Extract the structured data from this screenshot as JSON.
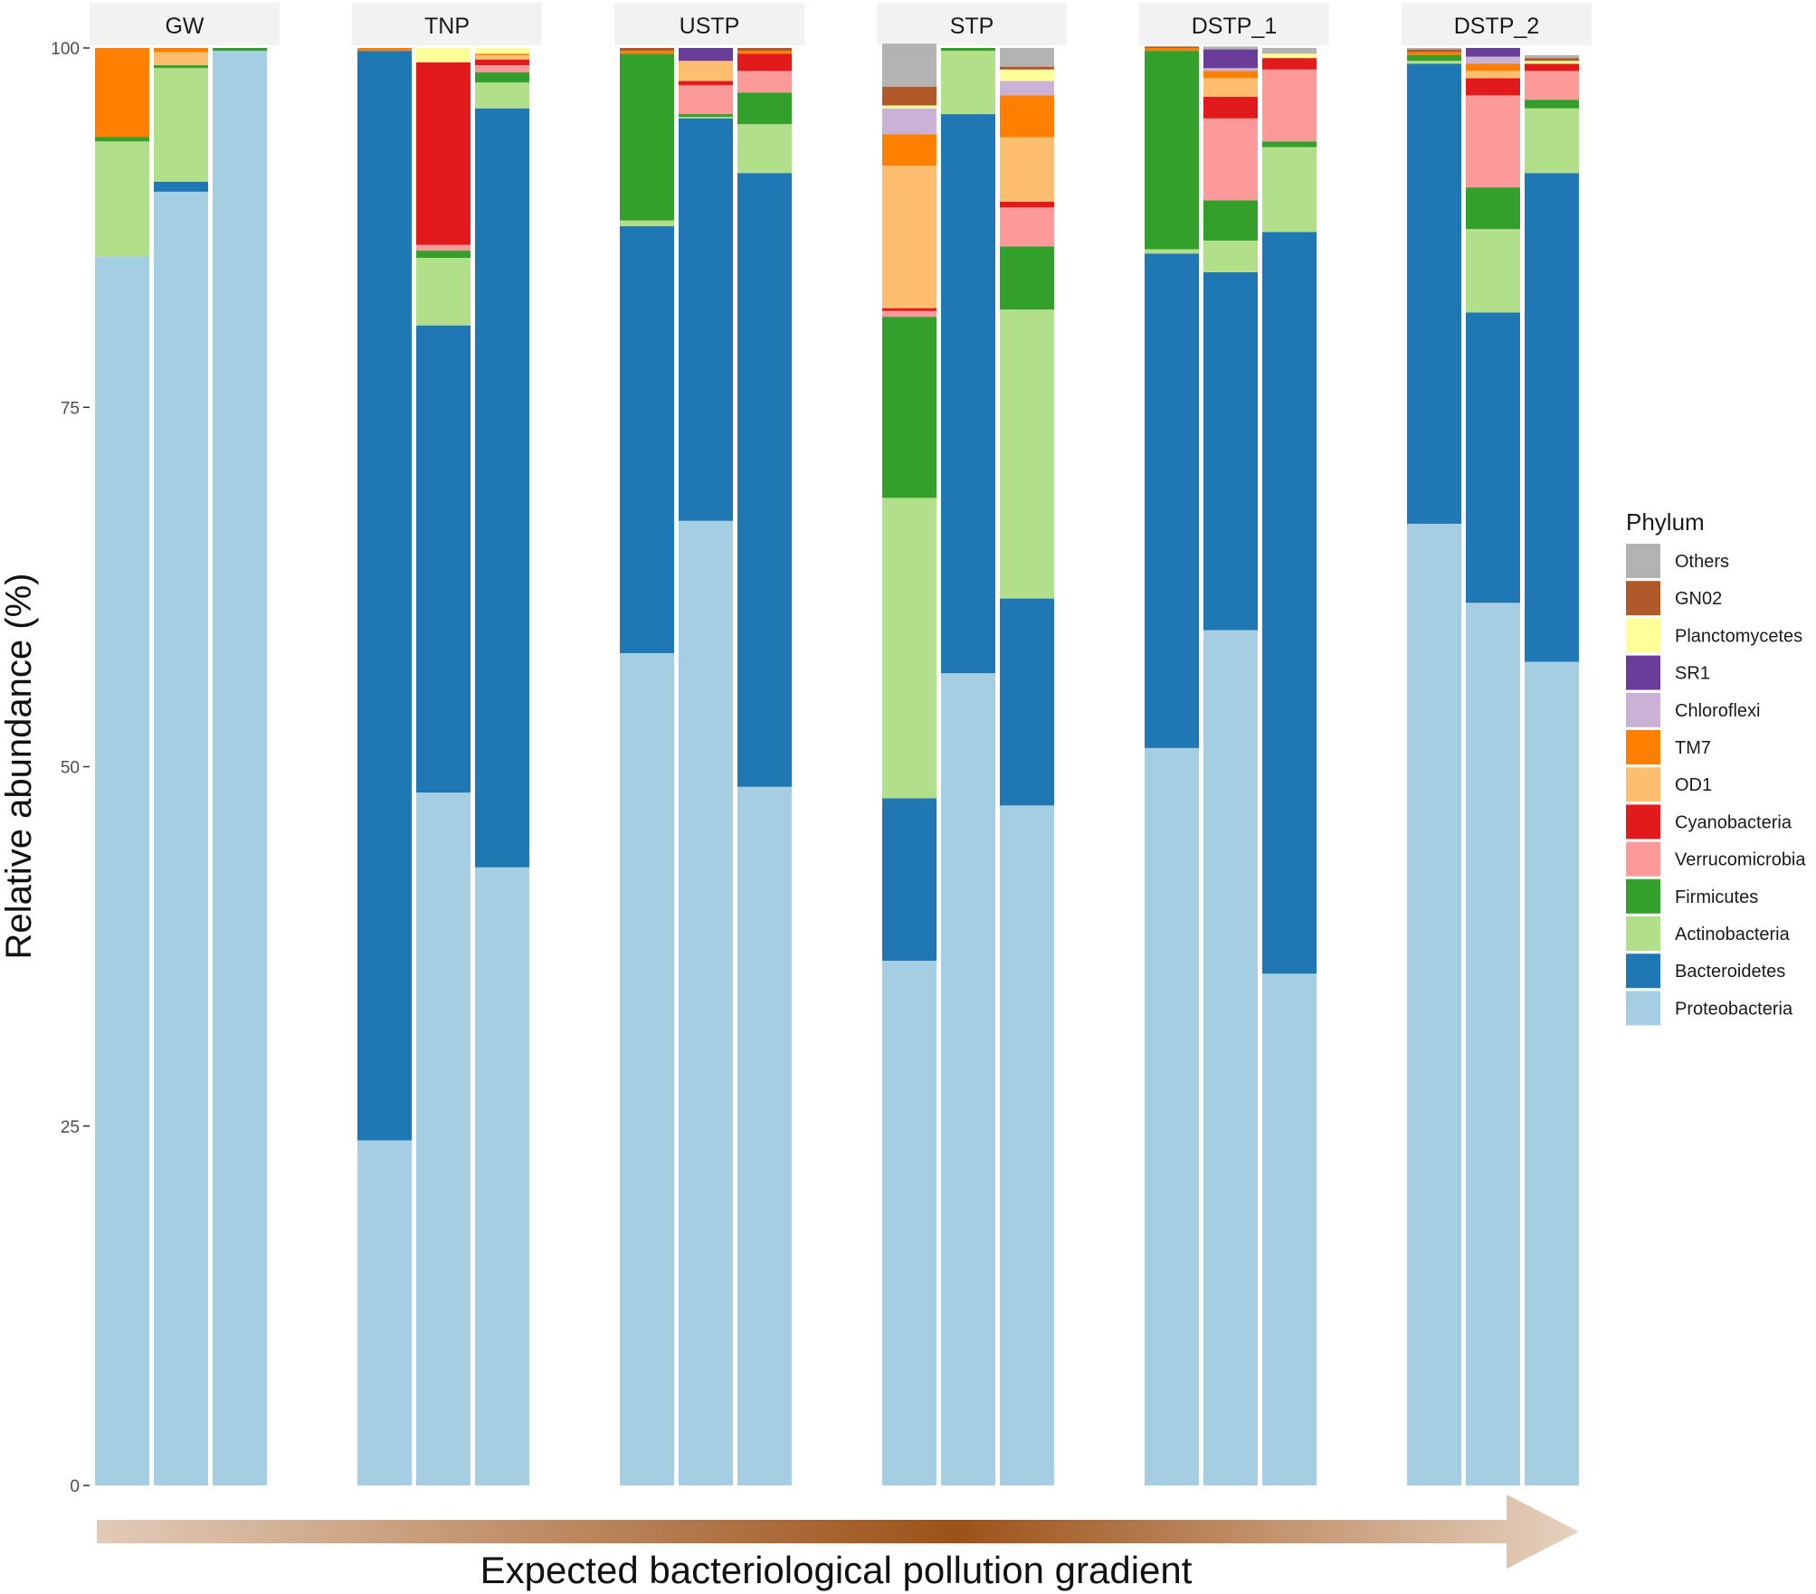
{
  "chart_data": {
    "type": "bar",
    "stacked": true,
    "ylabel": "Relative abundance (%)",
    "xlabel": "",
    "ylim": [
      0,
      100
    ],
    "yticks": [
      "0",
      "25",
      "50",
      "75",
      "100"
    ],
    "bottom_label": "Expected bacteriological pollution gradient",
    "legend": {
      "title": "Phylum",
      "placement": "right",
      "items": [
        {
          "name": "Others",
          "color": "#b3b3b3"
        },
        {
          "name": "GN02",
          "color": "#b15928"
        },
        {
          "name": "Planctomycetes",
          "color": "#ffff99"
        },
        {
          "name": "SR1",
          "color": "#6a3d9a"
        },
        {
          "name": "Chloroflexi",
          "color": "#cab2d6"
        },
        {
          "name": "TM7",
          "color": "#ff7f00"
        },
        {
          "name": "OD1",
          "color": "#fdbf6f"
        },
        {
          "name": "Cyanobacteria",
          "color": "#e31a1c"
        },
        {
          "name": "Verrucomicrobia",
          "color": "#fb9a99"
        },
        {
          "name": "Firmicutes",
          "color": "#33a02c"
        },
        {
          "name": "Actinobacteria",
          "color": "#b2df8a"
        },
        {
          "name": "Bacteroidetes",
          "color": "#1f78b4"
        },
        {
          "name": "Proteobacteria",
          "color": "#a6cee3"
        }
      ]
    },
    "stack_order": [
      "Proteobacteria",
      "Bacteroidetes",
      "Actinobacteria",
      "Firmicutes",
      "Verrucomicrobia",
      "Cyanobacteria",
      "OD1",
      "TM7",
      "Chloroflexi",
      "SR1",
      "Planctomycetes",
      "GN02",
      "Others"
    ],
    "facets": [
      {
        "name": "GW",
        "bars": [
          {
            "Proteobacteria": 85.5,
            "Bacteroidetes": 0,
            "Actinobacteria": 8.0,
            "Firmicutes": 0.3,
            "Verrucomicrobia": 0,
            "Cyanobacteria": 0,
            "OD1": 0,
            "TM7": 6.2,
            "Chloroflexi": 0,
            "SR1": 0,
            "Planctomycetes": 0,
            "GN02": 0,
            "Others": 0
          },
          {
            "Proteobacteria": 90.0,
            "Bacteroidetes": 0.7,
            "Actinobacteria": 7.9,
            "Firmicutes": 0.2,
            "Verrucomicrobia": 0,
            "Cyanobacteria": 0,
            "OD1": 0.9,
            "TM7": 0.3,
            "Chloroflexi": 0,
            "SR1": 0,
            "Planctomycetes": 0,
            "GN02": 0,
            "Others": 0
          },
          {
            "Proteobacteria": 99.8,
            "Bacteroidetes": 0,
            "Actinobacteria": 0,
            "Firmicutes": 0.2,
            "Verrucomicrobia": 0,
            "Cyanobacteria": 0,
            "OD1": 0,
            "TM7": 0,
            "Chloroflexi": 0,
            "SR1": 0,
            "Planctomycetes": 0,
            "GN02": 0,
            "Others": 0
          }
        ]
      },
      {
        "name": "TNP",
        "bars": [
          {
            "Proteobacteria": 24.0,
            "Bacteroidetes": 75.8,
            "Actinobacteria": 0,
            "Firmicutes": 0,
            "Verrucomicrobia": 0,
            "Cyanobacteria": 0,
            "OD1": 0,
            "TM7": 0.2,
            "Chloroflexi": 0,
            "SR1": 0,
            "Planctomycetes": 0,
            "GN02": 0,
            "Others": 0
          },
          {
            "Proteobacteria": 48.2,
            "Bacteroidetes": 32.5,
            "Actinobacteria": 4.7,
            "Firmicutes": 0.5,
            "Verrucomicrobia": 0.4,
            "Cyanobacteria": 12.7,
            "OD1": 0,
            "TM7": 0,
            "Chloroflexi": 0,
            "SR1": 0,
            "Planctomycetes": 1.0,
            "GN02": 0,
            "Others": 0
          },
          {
            "Proteobacteria": 43.0,
            "Bacteroidetes": 52.8,
            "Actinobacteria": 1.8,
            "Firmicutes": 0.7,
            "Verrucomicrobia": 0.5,
            "Cyanobacteria": 0.4,
            "OD1": 0.3,
            "TM7": 0.1,
            "Chloroflexi": 0,
            "SR1": 0,
            "Planctomycetes": 0.4,
            "GN02": 0,
            "Others": 0
          }
        ]
      },
      {
        "name": "USTP",
        "bars": [
          {
            "Proteobacteria": 57.9,
            "Bacteroidetes": 29.7,
            "Actinobacteria": 0.4,
            "Firmicutes": 11.6,
            "Verrucomicrobia": 0,
            "Cyanobacteria": 0,
            "OD1": 0,
            "TM7": 0.2,
            "Chloroflexi": 0,
            "SR1": 0,
            "Planctomycetes": 0,
            "GN02": 0.2,
            "Others": 0
          },
          {
            "Proteobacteria": 67.1,
            "Bacteroidetes": 28.0,
            "Actinobacteria": 0.1,
            "Firmicutes": 0.2,
            "Verrucomicrobia": 2.0,
            "Cyanobacteria": 0.3,
            "OD1": 1.4,
            "TM7": 0,
            "Chloroflexi": 0,
            "SR1": 0.9,
            "Planctomycetes": 0,
            "GN02": 0,
            "Others": 0
          },
          {
            "Proteobacteria": 48.6,
            "Bacteroidetes": 42.7,
            "Actinobacteria": 3.4,
            "Firmicutes": 2.2,
            "Verrucomicrobia": 1.5,
            "Cyanobacteria": 1.2,
            "OD1": 0,
            "TM7": 0.2,
            "Chloroflexi": 0,
            "SR1": 0,
            "Planctomycetes": 0,
            "GN02": 0.2,
            "Others": 0
          }
        ]
      },
      {
        "name": "STP",
        "bars": [
          {
            "Proteobacteria": 36.5,
            "Bacteroidetes": 11.3,
            "Actinobacteria": 20.9,
            "Firmicutes": 12.6,
            "Verrucomicrobia": 0.4,
            "Cyanobacteria": 0.2,
            "OD1": 9.9,
            "TM7": 2.2,
            "Chloroflexi": 1.8,
            "SR1": 0,
            "Planctomycetes": 0.2,
            "GN02": 1.3,
            "Others": 3.0
          },
          {
            "Proteobacteria": 56.5,
            "Bacteroidetes": 38.9,
            "Actinobacteria": 4.4,
            "Firmicutes": 0.2,
            "Verrucomicrobia": 0,
            "Cyanobacteria": 0,
            "OD1": 0,
            "TM7": 0,
            "Chloroflexi": 0,
            "SR1": 0,
            "Planctomycetes": 0,
            "GN02": 0,
            "Others": 0
          },
          {
            "Proteobacteria": 47.3,
            "Bacteroidetes": 14.4,
            "Actinobacteria": 20.1,
            "Firmicutes": 4.4,
            "Verrucomicrobia": 2.7,
            "Cyanobacteria": 0.4,
            "OD1": 4.5,
            "TM7": 2.9,
            "Chloroflexi": 1.0,
            "SR1": 0,
            "Planctomycetes": 0.8,
            "GN02": 0.2,
            "Others": 1.3
          }
        ]
      },
      {
        "name": "DSTP_1",
        "bars": [
          {
            "Proteobacteria": 51.3,
            "Bacteroidetes": 34.4,
            "Actinobacteria": 0.3,
            "Firmicutes": 13.8,
            "Verrucomicrobia": 0,
            "Cyanobacteria": 0,
            "OD1": 0,
            "TM7": 0.2,
            "Chloroflexi": 0,
            "SR1": 0,
            "Planctomycetes": 0,
            "GN02": 0.1,
            "Others": 0
          },
          {
            "Proteobacteria": 59.5,
            "Bacteroidetes": 24.9,
            "Actinobacteria": 2.2,
            "Firmicutes": 2.8,
            "Verrucomicrobia": 5.7,
            "Cyanobacteria": 1.5,
            "OD1": 1.3,
            "TM7": 0.5,
            "Chloroflexi": 0.2,
            "SR1": 1.3,
            "Planctomycetes": 0,
            "GN02": 0,
            "Others": 0.2
          },
          {
            "Proteobacteria": 35.6,
            "Bacteroidetes": 51.6,
            "Actinobacteria": 5.9,
            "Firmicutes": 0.4,
            "Verrucomicrobia": 5.0,
            "Cyanobacteria": 0.8,
            "OD1": 0,
            "TM7": 0,
            "Chloroflexi": 0,
            "SR1": 0,
            "Planctomycetes": 0.3,
            "GN02": 0,
            "Others": 0.4
          }
        ]
      },
      {
        "name": "DSTP_2",
        "bars": [
          {
            "Proteobacteria": 66.9,
            "Bacteroidetes": 32.0,
            "Actinobacteria": 0.2,
            "Firmicutes": 0.4,
            "Verrucomicrobia": 0,
            "Cyanobacteria": 0,
            "OD1": 0,
            "TM7": 0.2,
            "Chloroflexi": 0,
            "SR1": 0,
            "Planctomycetes": 0,
            "GN02": 0.2,
            "Others": 0.1
          },
          {
            "Proteobacteria": 61.4,
            "Bacteroidetes": 20.2,
            "Actinobacteria": 5.8,
            "Firmicutes": 2.9,
            "Verrucomicrobia": 6.4,
            "Cyanobacteria": 1.2,
            "OD1": 0.5,
            "TM7": 0.5,
            "Chloroflexi": 0.5,
            "SR1": 0.6,
            "Planctomycetes": 0,
            "GN02": 0,
            "Others": 0
          },
          {
            "Proteobacteria": 57.3,
            "Bacteroidetes": 34.0,
            "Actinobacteria": 4.5,
            "Firmicutes": 0.6,
            "Verrucomicrobia": 2.0,
            "Cyanobacteria": 0.5,
            "OD1": 0,
            "TM7": 0,
            "Chloroflexi": 0,
            "SR1": 0,
            "Planctomycetes": 0.2,
            "GN02": 0.2,
            "Others": 0.2
          }
        ]
      }
    ]
  }
}
